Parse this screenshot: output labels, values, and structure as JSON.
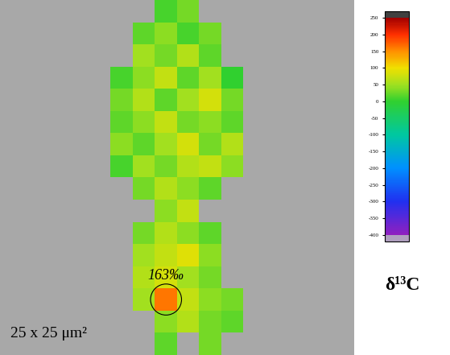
{
  "chart_data": {
    "type": "heatmap",
    "cells": [
      [
        null,
        null,
        null,
        null,
        null,
        null,
        null,
        10,
        30,
        null,
        null,
        null,
        null,
        null,
        null,
        null
      ],
      [
        null,
        null,
        null,
        null,
        null,
        null,
        20,
        40,
        10,
        30,
        null,
        null,
        null,
        null,
        null,
        null
      ],
      [
        null,
        null,
        null,
        null,
        null,
        null,
        50,
        30,
        60,
        20,
        null,
        null,
        null,
        null,
        null,
        null
      ],
      [
        null,
        null,
        null,
        null,
        null,
        10,
        40,
        70,
        20,
        50,
        0,
        null,
        null,
        null,
        null,
        null
      ],
      [
        null,
        null,
        null,
        null,
        null,
        30,
        60,
        20,
        50,
        80,
        30,
        null,
        null,
        null,
        null,
        null
      ],
      [
        null,
        null,
        null,
        null,
        null,
        20,
        40,
        70,
        30,
        40,
        20,
        null,
        null,
        null,
        null,
        null
      ],
      [
        null,
        null,
        null,
        null,
        null,
        40,
        20,
        50,
        80,
        30,
        60,
        null,
        null,
        null,
        null,
        null
      ],
      [
        null,
        null,
        null,
        null,
        null,
        10,
        50,
        30,
        60,
        70,
        40,
        null,
        null,
        null,
        null,
        null
      ],
      [
        null,
        null,
        null,
        null,
        null,
        null,
        30,
        60,
        40,
        20,
        null,
        null,
        null,
        null,
        null,
        null
      ],
      [
        null,
        null,
        null,
        null,
        null,
        null,
        null,
        40,
        70,
        null,
        null,
        null,
        null,
        null,
        null,
        null
      ],
      [
        null,
        null,
        null,
        null,
        null,
        null,
        30,
        60,
        40,
        20,
        null,
        null,
        null,
        null,
        null,
        null
      ],
      [
        null,
        null,
        null,
        null,
        null,
        null,
        50,
        70,
        90,
        40,
        null,
        null,
        null,
        null,
        null,
        null
      ],
      [
        null,
        null,
        null,
        null,
        null,
        null,
        60,
        80,
        50,
        30,
        null,
        null,
        null,
        null,
        null,
        null
      ],
      [
        null,
        null,
        null,
        null,
        null,
        null,
        50,
        163,
        70,
        40,
        30,
        null,
        null,
        null,
        null,
        null
      ],
      [
        null,
        null,
        null,
        null,
        null,
        null,
        null,
        40,
        60,
        30,
        20,
        null,
        null,
        null,
        null,
        null
      ],
      [
        null,
        null,
        null,
        null,
        null,
        null,
        null,
        20,
        null,
        30,
        null,
        null,
        null,
        null,
        null,
        null
      ]
    ],
    "color_range": [
      -400,
      250
    ],
    "color_ticks": [
      250,
      200,
      150,
      100,
      50,
      0,
      -50,
      -100,
      -150,
      -200,
      -250,
      -300,
      -350,
      -400
    ],
    "colorbar_label": "δ¹³C",
    "annotations": [
      {
        "label": "163‰",
        "value": 163
      }
    ],
    "scale_label": "25 x 25 μm²",
    "tick_labels": false
  }
}
